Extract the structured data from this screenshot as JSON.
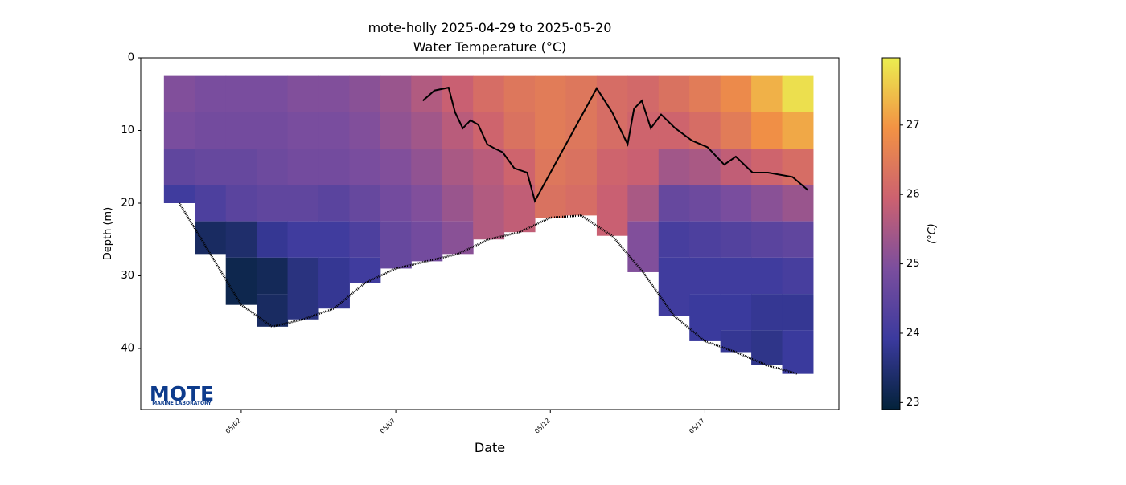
{
  "chart_data": {
    "type": "section",
    "title": "mote-holly 2025-04-29 to 2025-05-20",
    "subtitle": "Water Temperature (°C)",
    "x_label": "Date",
    "y_label": "Depth (m)",
    "colorbar_label": "(°C)",
    "logo_text": "MOTE",
    "logo_subtext": "MARINE LABORATORY",
    "xlim": [
      "2025-04-28T18:00",
      "2025-05-21T08:00"
    ],
    "xticks": [
      {
        "value": "2025-05-02T00:00",
        "label": "05/02"
      },
      {
        "value": "2025-05-07T00:00",
        "label": "05/07"
      },
      {
        "value": "2025-05-12T00:00",
        "label": "05/12"
      },
      {
        "value": "2025-05-17T00:00",
        "label": "05/17"
      }
    ],
    "ylim": [
      0,
      48.4
    ],
    "y_inverted": true,
    "yticks": [
      0,
      10,
      20,
      30,
      40
    ],
    "clim": [
      22.9,
      27.97
    ],
    "cticks": [
      23,
      24,
      25,
      26,
      27
    ],
    "colormap": [
      "#03223a",
      "#3b3a9e",
      "#7b4e9e",
      "#cc6170",
      "#f29244",
      "#ebee50"
    ],
    "x": [
      "2025-04-30T00:00",
      "2025-05-01T00:00",
      "2025-05-02T00:00",
      "2025-05-03T00:00",
      "2025-05-04T00:00",
      "2025-05-05T00:00",
      "2025-05-06T00:00",
      "2025-05-07T00:00",
      "2025-05-08T00:00",
      "2025-05-09T00:00",
      "2025-05-10T00:00",
      "2025-05-11T00:00",
      "2025-05-12T00:00",
      "2025-05-13T00:00",
      "2025-05-14T00:00",
      "2025-05-15T00:00",
      "2025-05-16T00:00",
      "2025-05-17T00:00",
      "2025-05-18T00:00",
      "2025-05-19T00:00",
      "2025-05-20T00:00"
    ],
    "depth_levels": [
      5,
      10,
      15,
      20,
      25,
      30,
      35,
      40
    ],
    "temperature": [
      [
        25.0,
        24.9,
        24.5,
        24.0,
        null,
        null,
        null,
        null
      ],
      [
        24.9,
        24.8,
        24.6,
        24.2,
        23.3,
        null,
        null,
        null
      ],
      [
        24.9,
        24.8,
        24.6,
        24.4,
        23.4,
        23.1,
        null,
        null
      ],
      [
        24.9,
        24.8,
        24.7,
        24.5,
        23.8,
        23.2,
        23.3,
        null
      ],
      [
        25.0,
        24.9,
        24.8,
        24.5,
        24.0,
        23.6,
        null,
        null
      ],
      [
        25.0,
        24.9,
        24.8,
        24.4,
        24.0,
        23.8,
        null,
        null
      ],
      [
        25.1,
        25.0,
        24.9,
        24.6,
        24.2,
        24.0,
        null,
        null
      ],
      [
        25.3,
        25.2,
        25.0,
        24.8,
        24.6,
        null,
        null,
        null
      ],
      [
        25.6,
        25.4,
        25.2,
        25.0,
        24.8,
        null,
        null,
        null
      ],
      [
        25.9,
        25.7,
        25.5,
        25.3,
        25.1,
        null,
        null,
        null
      ],
      [
        26.2,
        26.0,
        25.7,
        25.6,
        null,
        null,
        null,
        null
      ],
      [
        26.4,
        26.3,
        26.0,
        25.8,
        null,
        null,
        null,
        null
      ],
      [
        26.5,
        26.5,
        26.4,
        26.3,
        null,
        null,
        null,
        null
      ],
      [
        26.4,
        26.4,
        26.3,
        26.2,
        null,
        null,
        null,
        null
      ],
      [
        26.2,
        26.2,
        26.0,
        25.9,
        null,
        null,
        null,
        null
      ],
      [
        26.1,
        26.0,
        25.9,
        25.5,
        25.0,
        null,
        null,
        null
      ],
      [
        26.3,
        26.0,
        25.4,
        24.6,
        24.1,
        24.0,
        null,
        null
      ],
      [
        26.5,
        26.2,
        25.5,
        24.7,
        24.2,
        24.0,
        23.9,
        null
      ],
      [
        26.8,
        26.5,
        25.8,
        24.9,
        24.3,
        24.0,
        23.9,
        23.8
      ],
      [
        27.3,
        26.9,
        26.0,
        25.1,
        24.4,
        24.0,
        23.8,
        23.7
      ],
      [
        27.8,
        27.2,
        26.2,
        25.3,
        24.5,
        24.1,
        23.8,
        23.9
      ]
    ],
    "bottom_depth": [
      20,
      27,
      34,
      37,
      36,
      34.5,
      31,
      29,
      28,
      27,
      25,
      24,
      22,
      21.7,
      24.5,
      29.5,
      35.5,
      39,
      40.5,
      42.3,
      43.5
    ],
    "line": {
      "color": "#000000",
      "x": [
        "2025-05-07T21:00",
        "2025-05-08T06:00",
        "2025-05-08T17:00",
        "2025-05-08T22:00",
        "2025-05-09T04:00",
        "2025-05-09T10:00",
        "2025-05-09T16:00",
        "2025-05-09T23:00",
        "2025-05-10T05:00",
        "2025-05-10T11:00",
        "2025-05-10T20:00",
        "2025-05-11T06:00",
        "2025-05-11T12:00",
        "2025-05-13T12:00",
        "2025-05-14T00:00",
        "2025-05-14T12:00",
        "2025-05-14T17:00",
        "2025-05-14T23:00",
        "2025-05-15T06:00",
        "2025-05-15T14:00",
        "2025-05-16T01:00",
        "2025-05-16T14:00",
        "2025-05-17T02:00",
        "2025-05-17T15:00",
        "2025-05-18T00:00",
        "2025-05-18T13:00",
        "2025-05-19T01:00",
        "2025-05-19T20:00",
        "2025-05-20T08:00"
      ],
      "values": [
        5.9,
        4.5,
        4.1,
        7.5,
        9.7,
        8.6,
        9.2,
        11.9,
        12.5,
        13.0,
        15.2,
        15.8,
        19.7,
        4.2,
        7.5,
        11.9,
        7.0,
        5.9,
        9.7,
        7.8,
        9.7,
        11.4,
        12.3,
        14.7,
        13.6,
        15.8,
        15.8,
        16.4,
        18.2
      ]
    }
  }
}
